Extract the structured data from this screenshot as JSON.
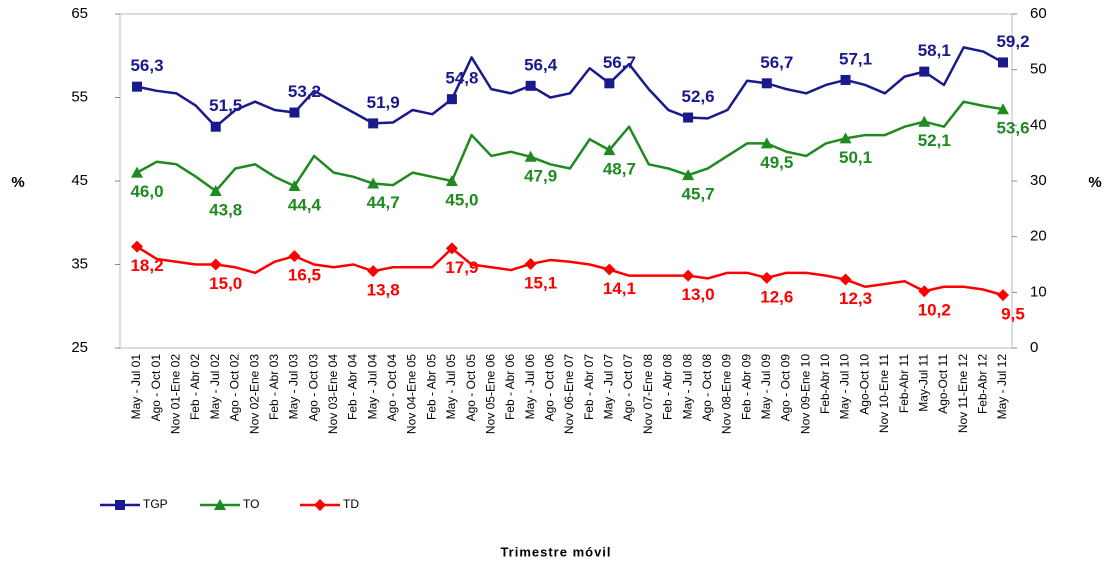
{
  "chart_data": {
    "type": "line",
    "xlabel": "Trimestre móvil",
    "ylabel": "%",
    "y2label": "%",
    "categories": [
      "May - Jul 01",
      "Ago - Oct 01",
      "Nov 01-Ene 02",
      "Feb - Abr 02",
      "May - Jul 02",
      "Ago - Oct 02",
      "Nov 02-Ene 03",
      "Feb - Abr 03",
      "May - Jul 03",
      "Ago - Oct 03",
      "Nov 03-Ene 04",
      "Feb - Abr 04",
      "May - Jul 04",
      "Ago - Oct 04",
      "Nov 04-Ene 05",
      "Feb - Abr 05",
      "May - Jul 05",
      "Ago - Oct 05",
      "Nov 05-Ene 06",
      "Feb - Abr 06",
      "May - Jul 06",
      "Ago - Oct 06",
      "Nov 06-Ene 07",
      "Feb - Abr 07",
      "May - Jul 07",
      "Ago - Oct 07",
      "Nov 07-Ene 08",
      "Feb - Abr 08",
      "May - Jul 08",
      "Ago - Oct 08",
      "Nov 08-Ene 09",
      "Feb - Abr 09",
      "May - Jul 09",
      "Ago - Oct 09",
      "Nov 09-Ene 10",
      "Feb-Abr 10",
      "May - Jul 10",
      "Ago-Oct 10",
      "Nov 10-Ene 11",
      "Feb-Abr 11",
      "May-Jul 11",
      "Ago-Oct 11",
      "Nov 11-Ene 12",
      "Feb-Abr 12",
      "May - Jul 12"
    ],
    "ylim": [
      25,
      65
    ],
    "yticks": [
      25,
      35,
      45,
      55,
      65
    ],
    "y2lim": [
      0,
      60
    ],
    "y2ticks": [
      0,
      10,
      20,
      30,
      40,
      50,
      60
    ],
    "grid": false,
    "series": [
      {
        "name": "TGP",
        "color": "#1a1a8c",
        "marker": "square",
        "label_side": "above",
        "values": [
          56.3,
          55.8,
          55.5,
          54,
          51.5,
          53.5,
          54.5,
          53.5,
          53.2,
          55.8,
          54.5,
          53.2,
          51.9,
          52,
          53.5,
          53,
          54.8,
          59.8,
          56,
          55.5,
          56.4,
          55,
          55.5,
          58.5,
          56.7,
          59,
          56,
          53.5,
          52.6,
          52.5,
          53.5,
          57,
          56.7,
          56,
          55.5,
          56.5,
          57.1,
          56.5,
          55.5,
          57.5,
          58.1,
          56.5,
          61,
          60.5,
          59.2
        ],
        "value_labels": [
          "56,3",
          null,
          null,
          null,
          "51,5",
          null,
          null,
          null,
          "53,2",
          null,
          null,
          null,
          "51,9",
          null,
          null,
          null,
          "54,8",
          null,
          null,
          null,
          "56,4",
          null,
          null,
          null,
          "56,7",
          null,
          null,
          null,
          "52,6",
          null,
          null,
          null,
          "56,7",
          null,
          null,
          null,
          "57,1",
          null,
          null,
          null,
          "58,1",
          null,
          null,
          null,
          "59,2"
        ]
      },
      {
        "name": "TO",
        "color": "#1f8a1f",
        "marker": "triangle",
        "label_side": "below",
        "values": [
          46.0,
          47.3,
          47,
          45.5,
          43.8,
          46.5,
          47,
          45.5,
          44.4,
          48,
          46,
          45.5,
          44.7,
          44.5,
          46,
          45.5,
          45.0,
          50.5,
          48,
          48.5,
          47.9,
          47,
          46.5,
          50,
          48.7,
          51.5,
          47,
          46.5,
          45.7,
          46.5,
          48,
          49.5,
          49.5,
          48.5,
          48,
          49.5,
          50.1,
          50.5,
          50.5,
          51.5,
          52.1,
          51.5,
          54.5,
          54,
          53.6
        ],
        "value_labels": [
          "46,0",
          null,
          null,
          null,
          "43,8",
          null,
          null,
          null,
          "44,4",
          null,
          null,
          null,
          "44,7",
          null,
          null,
          null,
          "45,0",
          null,
          null,
          null,
          "47,9",
          null,
          null,
          null,
          "48,7",
          null,
          null,
          null,
          "45,7",
          null,
          null,
          null,
          "49,5",
          null,
          null,
          null,
          "50,1",
          null,
          null,
          null,
          "52,1",
          null,
          null,
          null,
          "53,6"
        ]
      },
      {
        "name": "TD",
        "color": "#ff0000",
        "marker": "diamond",
        "label_side": "below",
        "axis": "y2",
        "values": [
          18.2,
          16,
          15.5,
          15,
          15.0,
          14.5,
          13.5,
          15.5,
          16.5,
          15,
          14.5,
          15,
          13.8,
          14.5,
          14.5,
          14.5,
          17.9,
          15,
          14.5,
          14,
          15.1,
          15.8,
          15.5,
          15,
          14.1,
          13,
          13,
          13,
          13.0,
          12.5,
          13.5,
          13.5,
          12.6,
          13.5,
          13.5,
          13,
          12.3,
          11,
          11.5,
          12,
          10.2,
          11,
          11,
          10.5,
          9.5
        ],
        "value_labels": [
          "18,2",
          null,
          null,
          null,
          "15,0",
          null,
          null,
          null,
          "16,5",
          null,
          null,
          null,
          "13,8",
          null,
          null,
          null,
          "17,9",
          null,
          null,
          null,
          "15,1",
          null,
          null,
          null,
          "14,1",
          null,
          null,
          null,
          "13,0",
          null,
          null,
          null,
          "12,6",
          null,
          null,
          null,
          "12,3",
          null,
          null,
          null,
          "10,2",
          null,
          null,
          null,
          "9,5"
        ]
      }
    ]
  }
}
